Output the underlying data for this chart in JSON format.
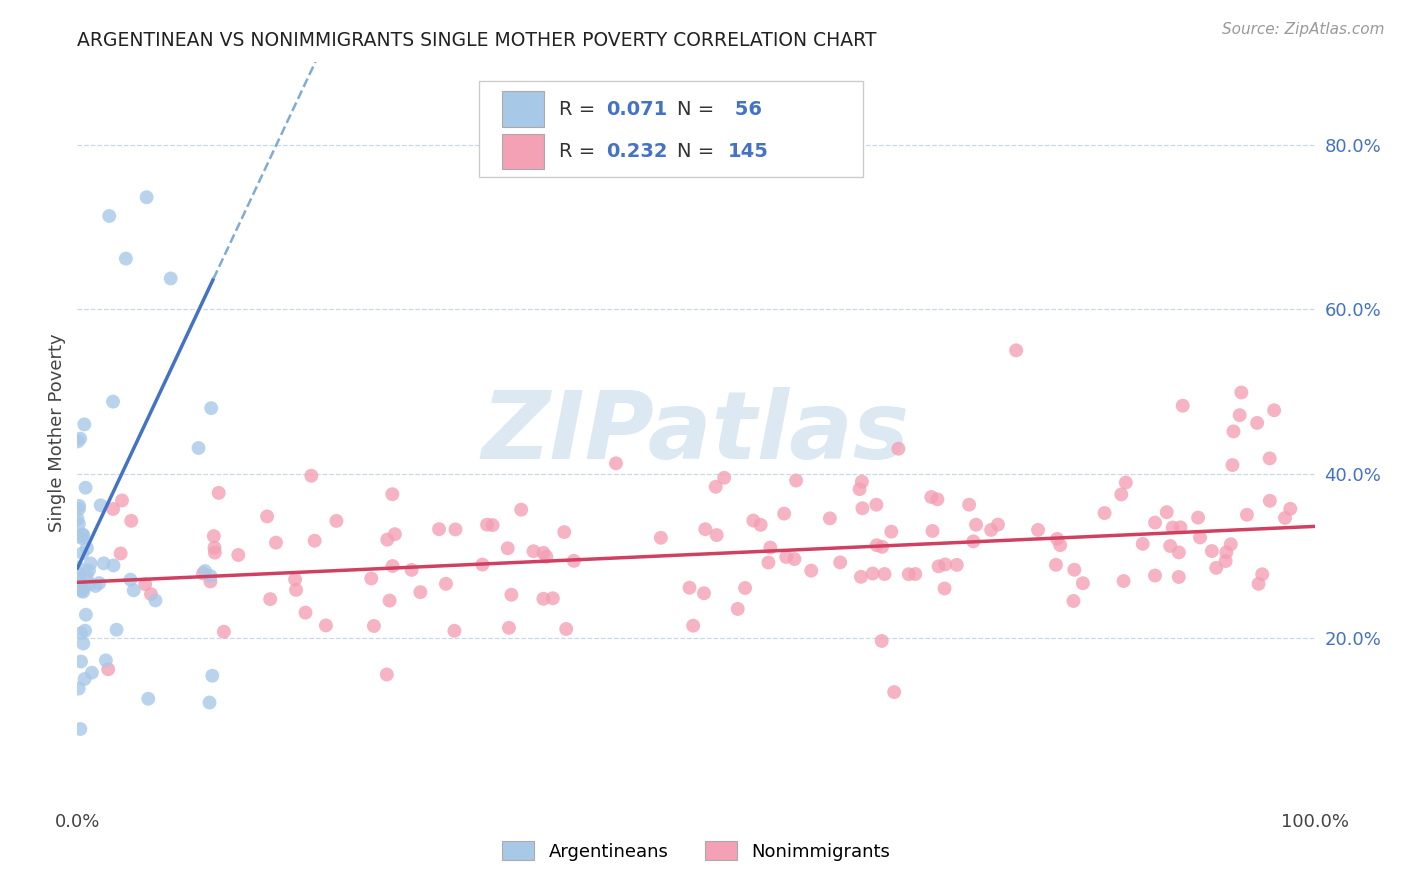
{
  "title": "ARGENTINEAN VS NONIMMIGRANTS SINGLE MOTHER POVERTY CORRELATION CHART",
  "source": "Source: ZipAtlas.com",
  "ylabel": "Single Mother Poverty",
  "ytick_vals": [
    0.2,
    0.4,
    0.6,
    0.8
  ],
  "ytick_labels": [
    "20.0%",
    "40.0%",
    "60.0%",
    "80.0%"
  ],
  "legend_label1": "Argentineans",
  "legend_label2": "Nonimmigrants",
  "R1": 0.071,
  "N1": 56,
  "R2": 0.232,
  "N2": 145,
  "color_blue_fill": "#a8c8e8",
  "color_pink_fill": "#f4a0b5",
  "color_blue_line": "#4472c4",
  "color_pink_line": "#d04060",
  "color_blue_dashed": "#80acd0",
  "color_watermark": "#dce8f2",
  "color_grid": "#c8d8e8",
  "background_color": "#ffffff",
  "blue_line_slope": 3.2,
  "blue_line_intercept": 0.285,
  "pink_line_slope": 0.068,
  "pink_line_intercept": 0.268,
  "xlim": [
    0.0,
    1.0
  ],
  "ylim": [
    0.0,
    0.9
  ]
}
